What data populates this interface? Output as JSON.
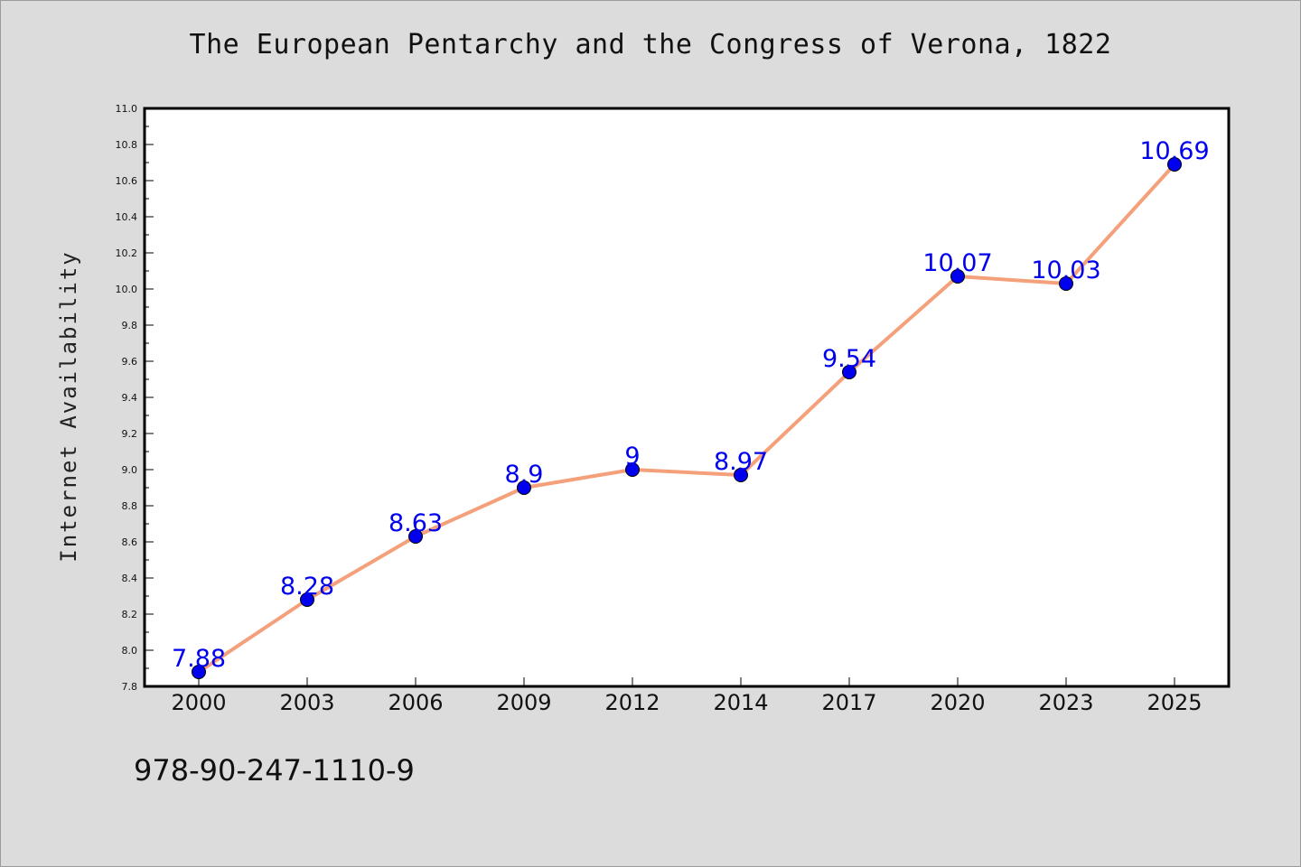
{
  "chart_data": {
    "type": "line",
    "title": "The European Pentarchy and the Congress of Verona, 1822",
    "xlabel": "",
    "ylabel": "Internet Availability",
    "categories": [
      "2000",
      "2003",
      "2006",
      "2009",
      "2012",
      "2014",
      "2017",
      "2020",
      "2023",
      "2025"
    ],
    "series": [
      {
        "values": [
          7.88,
          8.28,
          8.63,
          8.9,
          9,
          8.97,
          9.54,
          10.07,
          10.03,
          10.69
        ],
        "labels": [
          "7.88",
          "8.28",
          "8.63",
          "8.9",
          "9",
          "8.97",
          "9.54",
          "10.07",
          "10.03",
          "10.69"
        ]
      }
    ],
    "ylim": [
      7.8,
      11.0
    ],
    "yticks": [
      "7.8",
      "8.0",
      "8.2",
      "8.4",
      "8.6",
      "8.8",
      "9.0",
      "9.2",
      "9.4",
      "9.6",
      "9.8",
      "10.0",
      "10.2",
      "10.4",
      "10.6",
      "10.8",
      "11.0"
    ],
    "grid": false,
    "line_color": "#f4a07a",
    "marker_color": "#0000ee",
    "label_color": "#0000ee"
  },
  "footer": {
    "code": "978-90-247-1110-9"
  }
}
